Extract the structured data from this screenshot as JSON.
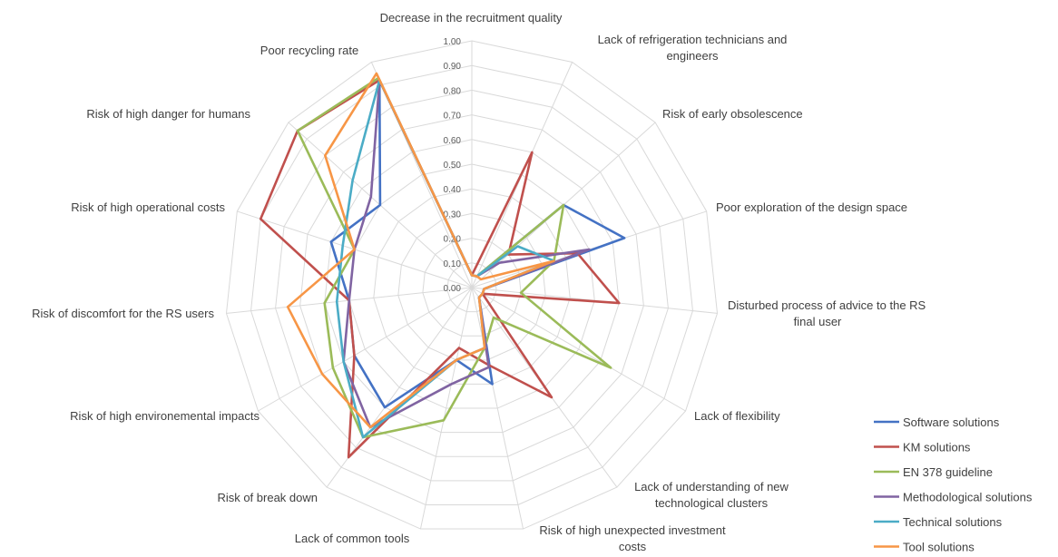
{
  "chart_data": {
    "type": "radar",
    "title": "",
    "rlim": [
      0,
      1
    ],
    "ticks": [
      "0.00",
      "0.10",
      "0.20",
      "0.30",
      "0.40",
      "0.50",
      "0.60",
      "0.70",
      "0.80",
      "0.90",
      "1.00"
    ],
    "grid": true,
    "legend_position": "bottom-right",
    "categories": [
      "Decrease in the recruitment quality",
      "Lack of refrigeration technicians and engineers",
      "Risk of early obsolescence",
      "Poor exploration of the design space",
      "Disturbed process of advice to the RS final user",
      "Lack of flexibility",
      "Lack of understanding of new technological clusters",
      "Risk of high unexpected investment costs",
      "Lack of common tools",
      "Risk of break down",
      "Risk of high environemental impacts",
      "Risk of discomfort for the RS users",
      "Risk of high operational costs",
      "Risk of high danger for humans",
      "Poor recycling rate"
    ],
    "series": [
      {
        "name": "Software solutions",
        "color": "#4472C4",
        "values": [
          0.05,
          0.05,
          0.5,
          0.65,
          0.05,
          0.05,
          0.05,
          0.4,
          0.3,
          0.6,
          0.55,
          0.5,
          0.6,
          0.5,
          0.92
        ]
      },
      {
        "name": "KM solutions",
        "color": "#C0504D",
        "values": [
          0.05,
          0.6,
          0.2,
          0.45,
          0.6,
          0.05,
          0.55,
          0.32,
          0.25,
          0.85,
          0.55,
          0.5,
          0.9,
          0.95,
          0.92
        ]
      },
      {
        "name": "EN 378 guideline",
        "color": "#9BBB59",
        "values": [
          0.05,
          0.05,
          0.5,
          0.35,
          0.2,
          0.65,
          0.15,
          0.25,
          0.55,
          0.75,
          0.65,
          0.6,
          0.5,
          0.95,
          0.93
        ]
      },
      {
        "name": "Methodological solutions",
        "color": "#8064A2",
        "values": [
          0.05,
          0.05,
          0.15,
          0.5,
          0.05,
          0.05,
          0.05,
          0.33,
          0.4,
          0.7,
          0.6,
          0.5,
          0.5,
          0.55,
          0.92
        ]
      },
      {
        "name": "Technical solutions",
        "color": "#4BACC6",
        "values": [
          0.05,
          0.05,
          0.25,
          0.35,
          0.05,
          0.05,
          0.05,
          0.25,
          0.3,
          0.75,
          0.6,
          0.55,
          0.55,
          0.65,
          0.92
        ]
      },
      {
        "name": "Tool solutions",
        "color": "#F79646",
        "values": [
          0.05,
          0.05,
          0.05,
          0.35,
          0.05,
          0.05,
          0.05,
          0.25,
          0.3,
          0.7,
          0.7,
          0.75,
          0.5,
          0.8,
          0.95
        ]
      }
    ]
  }
}
